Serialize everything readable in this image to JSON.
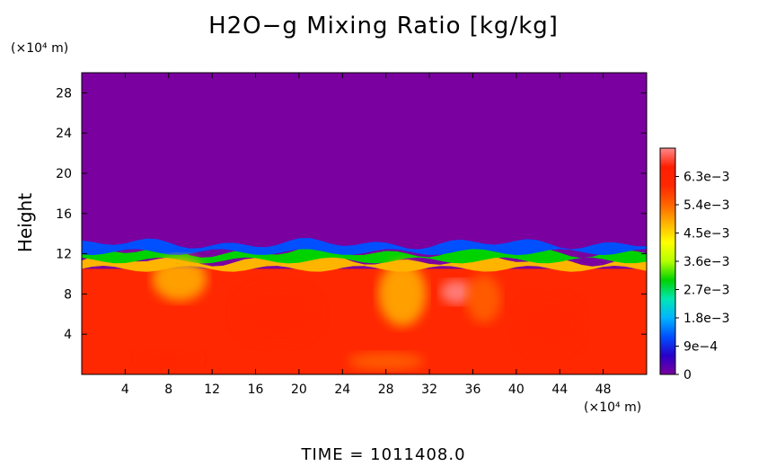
{
  "chart_data": {
    "type": "heatmap",
    "title": "H2O−g Mixing Ratio [kg/kg]",
    "ylabel": "Height",
    "x_unit": "(×10⁴ m)",
    "y_unit": "(×10⁴ m)",
    "xlim": [
      0,
      52
    ],
    "ylim": [
      0,
      30
    ],
    "x_ticks": [
      4,
      8,
      12,
      16,
      20,
      24,
      28,
      32,
      36,
      40,
      44,
      48
    ],
    "y_ticks": [
      4,
      8,
      12,
      16,
      20,
      24,
      28
    ],
    "colorbar": {
      "min": 0,
      "max": 0.0072,
      "labels": [
        "6.3e−3",
        "5.4e−3",
        "4.5e−3",
        "3.6e−3",
        "2.7e−3",
        "1.8e−3",
        "9e−4",
        "0"
      ],
      "label_values": [
        0.0063,
        0.0054,
        0.0045,
        0.0036,
        0.0027,
        0.0018,
        0.0009,
        0
      ],
      "colors": [
        "#7a00a0",
        "#2800c8",
        "#0050ff",
        "#00b4ff",
        "#00e6b4",
        "#00d200",
        "#b4ff00",
        "#ffff00",
        "#ffb400",
        "#ff6400",
        "#ff2800",
        "#ff1e00",
        "#ff8a8a"
      ]
    },
    "field": {
      "moist_layer_top_height": 10.5,
      "moist_value": 0.0061,
      "dry_value": 0,
      "transition_band": [
        10.5,
        13
      ],
      "transition_values": [
        0.0045,
        0.0027,
        0.0009
      ]
    }
  },
  "footer": {
    "time_label": "TIME  =  1011408.0"
  }
}
